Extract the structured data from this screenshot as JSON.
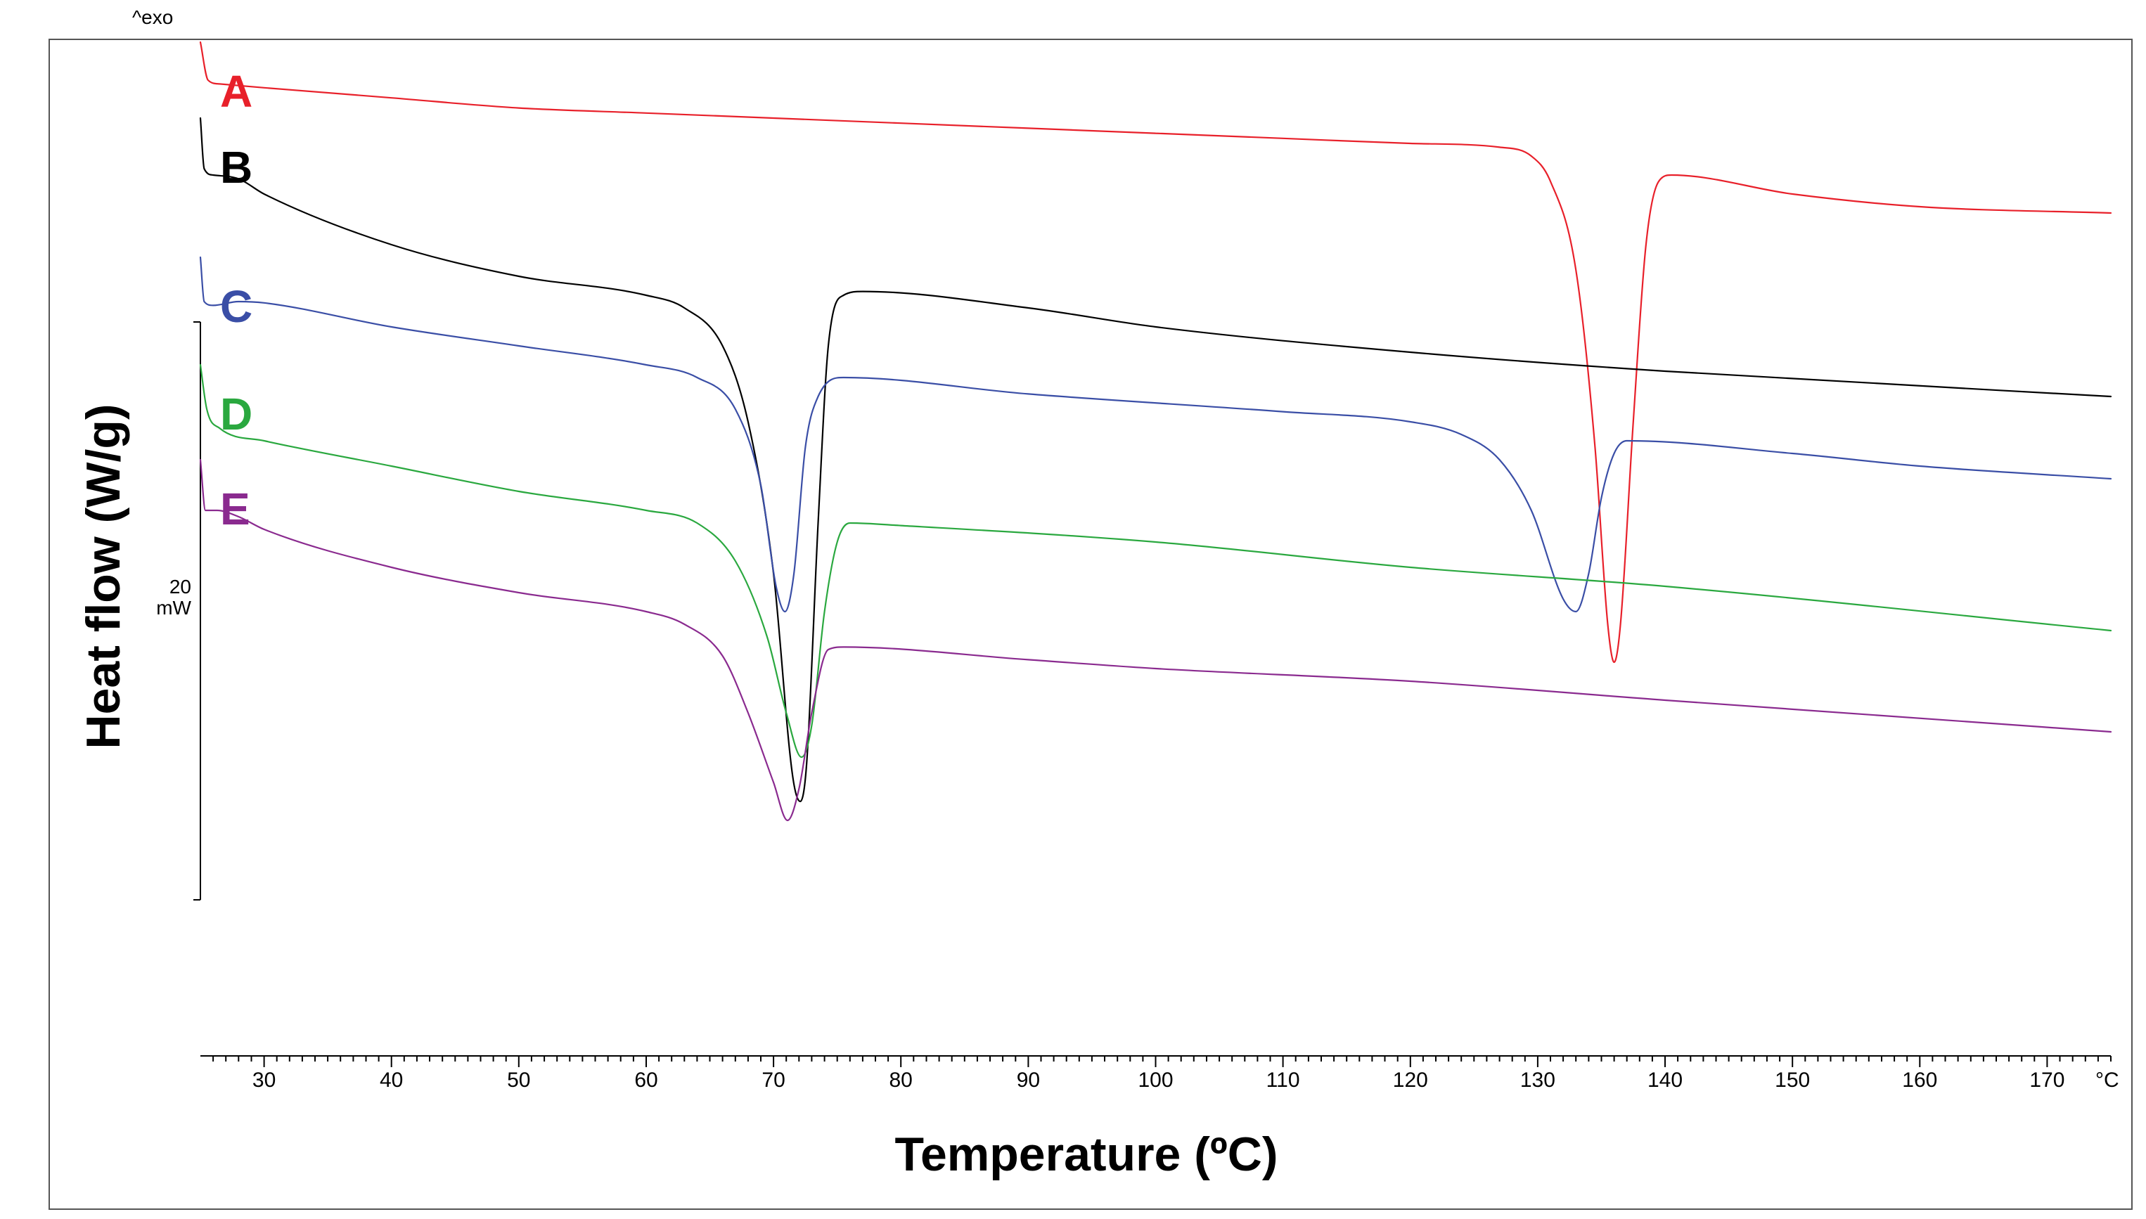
{
  "chart_data": {
    "type": "line",
    "title": "",
    "xlabel": "Temperature (ºC)",
    "ylabel": "Heat flow (W/g)",
    "exo_label": "^exo",
    "scale_bar": {
      "value": "20",
      "unit": "mW"
    },
    "x_unit_label": "°C",
    "xlim": [
      25,
      175
    ],
    "x_ticks": [
      "30",
      "40",
      "50",
      "60",
      "70",
      "80",
      "90",
      "100",
      "110",
      "120",
      "130",
      "140",
      "150",
      "160",
      "170"
    ],
    "y_ticks_shown": false,
    "grid": false,
    "series": [
      {
        "name": "A",
        "color": "#e8202a",
        "points": [
          [
            25,
            0
          ],
          [
            25.6,
            -0.3
          ],
          [
            26.5,
            -0.33
          ],
          [
            30,
            -0.36
          ],
          [
            40,
            -0.44
          ],
          [
            50,
            -0.52
          ],
          [
            60,
            -0.56
          ],
          [
            70,
            -0.6
          ],
          [
            80,
            -0.64
          ],
          [
            90,
            -0.68
          ],
          [
            100,
            -0.72
          ],
          [
            110,
            -0.76
          ],
          [
            120,
            -0.8
          ],
          [
            127,
            -0.83
          ],
          [
            129.5,
            -0.9
          ],
          [
            131,
            -1.1
          ],
          [
            133,
            -1.8
          ],
          [
            134.5,
            -3.2
          ],
          [
            135.5,
            -4.6
          ],
          [
            136,
            -4.9
          ],
          [
            136.5,
            -4.6
          ],
          [
            137.5,
            -3.0
          ],
          [
            138.5,
            -1.6
          ],
          [
            139.5,
            -1.1
          ],
          [
            140.5,
            -1.05
          ],
          [
            150,
            -1.2
          ],
          [
            160,
            -1.3
          ],
          [
            175,
            -1.35
          ]
        ]
      },
      {
        "name": "B",
        "color": "#000000",
        "points": [
          [
            25,
            -0.6
          ],
          [
            25.3,
            -1.0
          ],
          [
            26,
            -1.05
          ],
          [
            28,
            -1.08
          ],
          [
            30,
            -1.2
          ],
          [
            40,
            -1.6
          ],
          [
            50,
            -1.85
          ],
          [
            60,
            -2.0
          ],
          [
            63,
            -2.1
          ],
          [
            66,
            -2.4
          ],
          [
            68,
            -3.0
          ],
          [
            70,
            -4.2
          ],
          [
            71.5,
            -5.8
          ],
          [
            72.1,
            -6.0
          ],
          [
            72.6,
            -5.7
          ],
          [
            73.5,
            -3.8
          ],
          [
            74.3,
            -2.4
          ],
          [
            75.5,
            -2.0
          ],
          [
            77,
            -1.97
          ],
          [
            90,
            -2.1
          ],
          [
            100,
            -2.25
          ],
          [
            120,
            -2.45
          ],
          [
            140,
            -2.6
          ],
          [
            175,
            -2.8
          ]
        ]
      },
      {
        "name": "C",
        "color": "#3a4ea6",
        "points": [
          [
            25,
            -1.7
          ],
          [
            25.3,
            -2.05
          ],
          [
            26,
            -2.08
          ],
          [
            28,
            -2.05
          ],
          [
            30,
            -2.06
          ],
          [
            40,
            -2.25
          ],
          [
            50,
            -2.4
          ],
          [
            60,
            -2.55
          ],
          [
            64,
            -2.65
          ],
          [
            67,
            -2.9
          ],
          [
            69,
            -3.5
          ],
          [
            70.2,
            -4.3
          ],
          [
            70.9,
            -4.5
          ],
          [
            71.6,
            -4.2
          ],
          [
            72.5,
            -3.2
          ],
          [
            73.5,
            -2.8
          ],
          [
            75.5,
            -2.65
          ],
          [
            90,
            -2.78
          ],
          [
            110,
            -2.92
          ],
          [
            120,
            -3.0
          ],
          [
            124,
            -3.1
          ],
          [
            127,
            -3.3
          ],
          [
            129.5,
            -3.7
          ],
          [
            132,
            -4.4
          ],
          [
            133,
            -4.5
          ],
          [
            134,
            -4.2
          ],
          [
            135,
            -3.6
          ],
          [
            136,
            -3.25
          ],
          [
            137,
            -3.15
          ],
          [
            150,
            -3.25
          ],
          [
            160,
            -3.35
          ],
          [
            175,
            -3.45
          ]
        ]
      },
      {
        "name": "D",
        "color": "#2aa83f",
        "points": [
          [
            25,
            -2.55
          ],
          [
            25.5,
            -2.9
          ],
          [
            26.5,
            -3.05
          ],
          [
            30,
            -3.15
          ],
          [
            40,
            -3.35
          ],
          [
            50,
            -3.55
          ],
          [
            60,
            -3.7
          ],
          [
            64,
            -3.8
          ],
          [
            67,
            -4.1
          ],
          [
            69.5,
            -4.7
          ],
          [
            71,
            -5.3
          ],
          [
            72.2,
            -5.65
          ],
          [
            73,
            -5.4
          ],
          [
            74,
            -4.5
          ],
          [
            75,
            -3.95
          ],
          [
            76,
            -3.8
          ],
          [
            80,
            -3.82
          ],
          [
            100,
            -3.95
          ],
          [
            120,
            -4.15
          ],
          [
            140,
            -4.3
          ],
          [
            175,
            -4.65
          ]
        ]
      },
      {
        "name": "E",
        "color": "#8a2a8f",
        "points": [
          [
            25,
            -3.3
          ],
          [
            25.4,
            -3.7
          ],
          [
            26.3,
            -3.7
          ],
          [
            28,
            -3.75
          ],
          [
            30,
            -3.85
          ],
          [
            40,
            -4.15
          ],
          [
            50,
            -4.35
          ],
          [
            60,
            -4.5
          ],
          [
            63,
            -4.6
          ],
          [
            66,
            -4.85
          ],
          [
            68,
            -5.3
          ],
          [
            70,
            -5.85
          ],
          [
            71.1,
            -6.15
          ],
          [
            72,
            -5.9
          ],
          [
            73,
            -5.3
          ],
          [
            74.3,
            -4.8
          ],
          [
            75.5,
            -4.78
          ],
          [
            90,
            -4.88
          ],
          [
            100,
            -4.95
          ],
          [
            120,
            -5.05
          ],
          [
            140,
            -5.2
          ],
          [
            175,
            -5.45
          ]
        ]
      }
    ]
  }
}
